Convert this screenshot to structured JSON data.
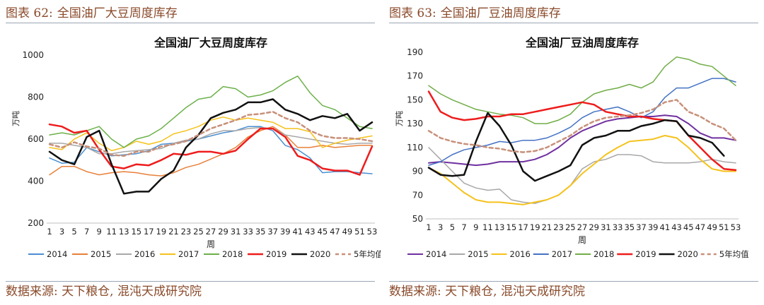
{
  "figures": [
    {
      "header_label": "图表 62:",
      "header_title": "全国油厂大豆周度库存",
      "source": "数据来源: 天下粮仓, 混沌天成研究院",
      "chart_data": {
        "type": "line",
        "title": "全国油厂大豆周度库存",
        "xlabel": "周",
        "ylabel": "万吨",
        "ylim": [
          200,
          1000
        ],
        "yticks": [
          200,
          400,
          600,
          800,
          1000
        ],
        "categories": [
          1,
          3,
          5,
          7,
          9,
          11,
          13,
          15,
          17,
          19,
          21,
          23,
          25,
          27,
          29,
          31,
          33,
          35,
          37,
          39,
          41,
          43,
          45,
          47,
          49,
          51,
          53
        ],
        "grid": false,
        "legend_position": "bottom",
        "series": [
          {
            "name": "2014",
            "color": "#4a8fd0",
            "width": 1.5,
            "dash": "",
            "values": [
              510,
              485,
              490,
              560,
              540,
              520,
              525,
              530,
              545,
              575,
              580,
              590,
              600,
              615,
              630,
              640,
              660,
              660,
              640,
              570,
              550,
              510,
              440,
              445,
              445,
              440,
              435
            ]
          },
          {
            "name": "2015",
            "color": "#e8803a",
            "width": 1.5,
            "dash": "",
            "values": [
              430,
              470,
              470,
              445,
              430,
              440,
              445,
              440,
              430,
              425,
              440,
              465,
              480,
              505,
              530,
              560,
              610,
              640,
              660,
              620,
              560,
              560,
              570,
              560,
              565,
              570,
              570
            ]
          },
          {
            "name": "2016",
            "color": "#a8a8a8",
            "width": 1.5,
            "dash": "",
            "values": [
              580,
              580,
              570,
              560,
              530,
              530,
              540,
              545,
              550,
              555,
              580,
              595,
              600,
              625,
              640,
              640,
              650,
              655,
              650,
              620,
              610,
              600,
              590,
              580,
              575,
              580,
              580
            ]
          },
          {
            "name": "2017",
            "color": "#f5c21b",
            "width": 1.5,
            "dash": "",
            "values": [
              560,
              550,
              600,
              630,
              580,
              545,
              560,
              590,
              575,
              590,
              625,
              640,
              660,
              690,
              705,
              690,
              700,
              690,
              680,
              650,
              650,
              635,
              560,
              580,
              595,
              605,
              615
            ]
          },
          {
            "name": "2018",
            "color": "#6cb14a",
            "width": 1.5,
            "dash": "",
            "values": [
              620,
              630,
              620,
              640,
              660,
              600,
              560,
              600,
              615,
              650,
              700,
              750,
              790,
              800,
              850,
              840,
              800,
              810,
              830,
              870,
              900,
              820,
              760,
              740,
              700,
              660,
              650
            ]
          },
          {
            "name": "2019",
            "color": "#ee1c1c",
            "width": 2.5,
            "dash": "",
            "values": [
              670,
              660,
              630,
              640,
              550,
              470,
              460,
              480,
              475,
              500,
              530,
              525,
              540,
              540,
              530,
              545,
              600,
              650,
              650,
              610,
              520,
              500,
              460,
              450,
              450,
              430,
              565
            ]
          },
          {
            "name": "2020",
            "color": "#111111",
            "width": 2.5,
            "dash": "",
            "values": [
              540,
              500,
              480,
              610,
              640,
              480,
              340,
              350,
              350,
              410,
              450,
              560,
              620,
              700,
              725,
              740,
              775,
              775,
              790,
              740,
              720,
              690,
              710,
              700,
              720,
              640,
              680
            ]
          },
          {
            "name": "5年均值",
            "color": "#c8907a",
            "width": 2.5,
            "dash": "5 4",
            "values": [
              575,
              560,
              585,
              565,
              555,
              525,
              520,
              540,
              540,
              565,
              575,
              590,
              620,
              650,
              670,
              690,
              715,
              720,
              730,
              700,
              680,
              640,
              615,
              605,
              605,
              600,
              590
            ]
          }
        ]
      }
    },
    {
      "header_label": "图表 63:",
      "header_title": "全国油厂豆油周度库存",
      "source": "数据来源: 天下粮仓, 混沌天成研究院",
      "chart_data": {
        "type": "line",
        "title": "全国油厂豆油周度库存",
        "xlabel": "周",
        "ylabel": "万吨",
        "ylim": [
          50,
          190
        ],
        "yticks": [
          50,
          70,
          90,
          110,
          130,
          150,
          170,
          190
        ],
        "categories": [
          1,
          3,
          5,
          7,
          9,
          11,
          13,
          15,
          17,
          19,
          21,
          23,
          25,
          27,
          29,
          31,
          33,
          35,
          37,
          39,
          41,
          43,
          45,
          47,
          49,
          51,
          53
        ],
        "grid": false,
        "legend_position": "bottom",
        "series": [
          {
            "name": "2014",
            "color": "#7030a0",
            "width": 2.0,
            "dash": "",
            "values": [
              97,
              98,
              97,
              96,
              95,
              96,
              98,
              98,
              98,
              100,
              104,
              110,
              118,
              124,
              128,
              132,
              134,
              135,
              136,
              136,
              137,
              136,
              130,
              122,
              118,
              118,
              116
            ]
          },
          {
            "name": "2015",
            "color": "#a8a8a8",
            "width": 1.5,
            "dash": "",
            "values": [
              110,
              100,
              90,
              80,
              76,
              74,
              75,
              66,
              64,
              63,
              66,
              70,
              78,
              92,
              98,
              100,
              104,
              104,
              103,
              98,
              97,
              97,
              97,
              98,
              100,
              98,
              97
            ]
          },
          {
            "name": "2016",
            "color": "#f5c21b",
            "width": 2.0,
            "dash": "",
            "values": [
              93,
              88,
              80,
              72,
              66,
              64,
              64,
              63,
              62,
              64,
              66,
              70,
              78,
              88,
              96,
              104,
              110,
              115,
              116,
              117,
              120,
              118,
              110,
              100,
              92,
              90,
              90
            ]
          },
          {
            "name": "2017",
            "color": "#4472c4",
            "width": 1.5,
            "dash": "",
            "values": [
              95,
              98,
              104,
              108,
              110,
              112,
              115,
              114,
              116,
              116,
              118,
              122,
              127,
              135,
              140,
              142,
              144,
              140,
              135,
              140,
              152,
              160,
              160,
              164,
              168,
              168,
              165
            ]
          },
          {
            "name": "2018",
            "color": "#70ad47",
            "width": 1.5,
            "dash": "",
            "values": [
              162,
              155,
              150,
              146,
              142,
              140,
              138,
              137,
              135,
              130,
              130,
              133,
              138,
              148,
              155,
              158,
              160,
              163,
              160,
              165,
              178,
              186,
              184,
              180,
              178,
              170,
              162
            ]
          },
          {
            "name": "2019",
            "color": "#ee1c1c",
            "width": 2.5,
            "dash": "",
            "values": [
              157,
              140,
              135,
              133,
              134,
              136,
              136,
              138,
              138,
              140,
              142,
              144,
              146,
              148,
              146,
              140,
              138,
              136,
              136,
              134,
              133,
              132,
              120,
              110,
              100,
              92,
              91
            ]
          },
          {
            "name": "2020",
            "color": "#111111",
            "width": 2.5,
            "dash": "",
            "values": [
              93,
              87,
              86,
              87,
              115,
              139,
              128,
              112,
              90,
              82,
              86,
              90,
              95,
              112,
              118,
              120,
              124,
              124,
              128,
              130,
              133,
              132,
              120,
              118,
              114,
              103,
              null
            ]
          },
          {
            "name": "5年均值",
            "color": "#c8907a",
            "width": 2.5,
            "dash": "5 4",
            "values": [
              124,
              118,
              115,
              113,
              112,
              110,
              109,
              107,
              106,
              107,
              110,
              115,
              120,
              127,
              132,
              135,
              136,
              137,
              139,
              142,
              148,
              150,
              140,
              136,
              130,
              126,
              116
            ]
          }
        ]
      }
    }
  ]
}
